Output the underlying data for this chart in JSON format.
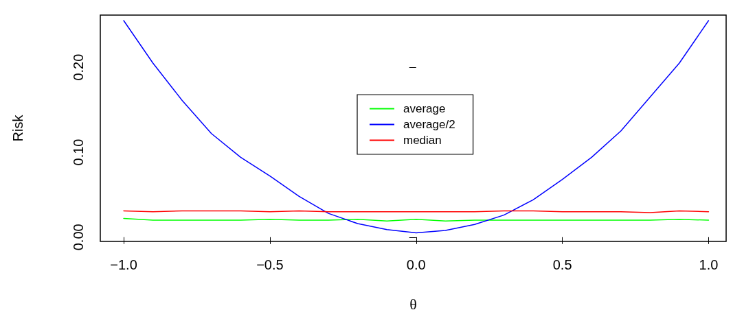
{
  "chart_data": {
    "type": "line",
    "xlabel": "θ",
    "ylabel": "Risk",
    "x": [
      -1.0,
      -0.9,
      -0.8,
      -0.7,
      -0.6,
      -0.5,
      -0.4,
      -0.3,
      -0.2,
      -0.1,
      0.0,
      0.1,
      0.2,
      0.3,
      0.4,
      0.5,
      0.6,
      0.7,
      0.8,
      0.9,
      1.0
    ],
    "series": [
      {
        "name": "average",
        "color": "#00ff00",
        "values": [
          0.022,
          0.02,
          0.02,
          0.02,
          0.02,
          0.021,
          0.02,
          0.02,
          0.021,
          0.019,
          0.021,
          0.019,
          0.02,
          0.02,
          0.02,
          0.02,
          0.02,
          0.02,
          0.02,
          0.021,
          0.02
        ]
      },
      {
        "name": "average/2",
        "color": "#0000ff",
        "values": [
          0.255,
          0.205,
          0.161,
          0.122,
          0.094,
          0.072,
          0.048,
          0.028,
          0.016,
          0.009,
          0.005,
          0.008,
          0.015,
          0.026,
          0.044,
          0.068,
          0.094,
          0.125,
          0.165,
          0.205,
          0.255
        ]
      },
      {
        "name": "median",
        "color": "#ff0000",
        "values": [
          0.031,
          0.03,
          0.031,
          0.031,
          0.031,
          0.03,
          0.031,
          0.03,
          0.03,
          0.03,
          0.03,
          0.03,
          0.03,
          0.031,
          0.031,
          0.03,
          0.03,
          0.03,
          0.029,
          0.031,
          0.03
        ]
      }
    ],
    "xlim": [
      -1.08,
      1.06
    ],
    "ylim": [
      -0.005,
      0.2615
    ],
    "xticks": [
      {
        "value": -1,
        "label": "−1.0"
      },
      {
        "value": -0.5,
        "label": "−0.5"
      },
      {
        "value": 0,
        "label": "0.0"
      },
      {
        "value": 0.5,
        "label": "0.5"
      },
      {
        "value": 1,
        "label": "1.0"
      }
    ],
    "yticks": [
      {
        "value": 0,
        "label": "0.00"
      },
      {
        "value": 0.1,
        "label": "0.10"
      },
      {
        "value": 0.2,
        "label": "0.20"
      }
    ],
    "legend": "top",
    "grid": false,
    "marker": "none",
    "line_style": "solid"
  }
}
